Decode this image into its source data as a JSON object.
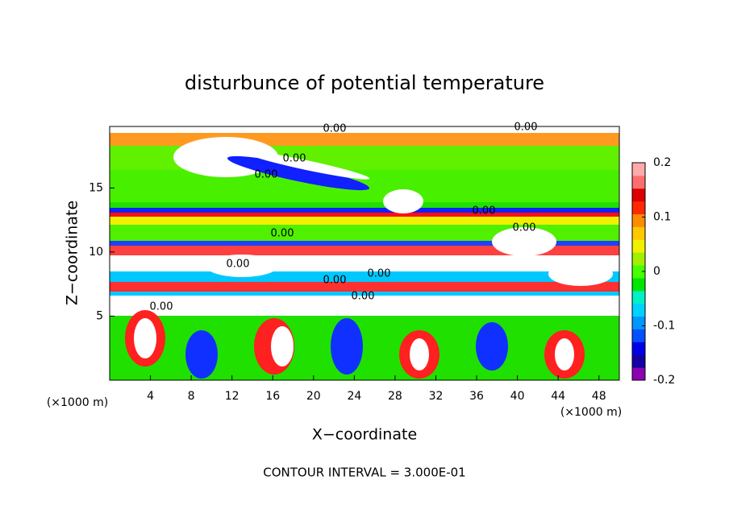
{
  "chart_data": {
    "type": "contour",
    "title": "disturbunce of potential temperature",
    "xlabel": "X−coordinate",
    "ylabel": "Z−coordinate",
    "x_unit": "(×1000 m)",
    "xlim": [
      0,
      50
    ],
    "xticks": [
      4,
      8,
      12,
      16,
      20,
      24,
      28,
      32,
      36,
      40,
      44,
      48
    ],
    "ylim": [
      0,
      19.8
    ],
    "yticks": [
      5,
      10,
      15
    ],
    "footer": "CONTOUR INTERVAL = 3.000E-01",
    "colorbar": {
      "lim": [
        -0.2,
        0.2
      ],
      "ticks": [
        -0.2,
        -0.1,
        0,
        0.1,
        0.2
      ],
      "colors": [
        "#8c00b4",
        "#1400a0",
        "#0000e6",
        "#0050ff",
        "#0096ff",
        "#00d2ff",
        "#00f0c8",
        "#00e600",
        "#46ff00",
        "#a0f000",
        "#f0f000",
        "#ffc800",
        "#ff8c00",
        "#ff2800",
        "#dc0000",
        "#ff6e6e",
        "#ffaaaa"
      ]
    },
    "contour_labels": [
      "0.00",
      "0.00",
      "0.00",
      "0.00",
      "0.00",
      "0.00",
      "0.00",
      "0.00",
      "0.00",
      "0.00",
      "0.00",
      "0.00"
    ]
  }
}
